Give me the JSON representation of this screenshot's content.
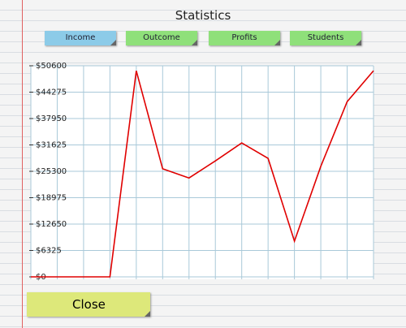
{
  "header": {
    "title": "Statistics"
  },
  "tabs": [
    "Income",
    "Outcome",
    "Profits",
    "Students"
  ],
  "chart_data": {
    "type": "line",
    "color": "#e00000",
    "values": [
      0,
      0,
      0,
      0,
      49400,
      25900,
      23700,
      27800,
      32100,
      28400,
      8560,
      26500,
      42000,
      49400
    ],
    "ylim": [
      0,
      50600
    ],
    "yticks": [
      {
        "value": 0,
        "label": "$0"
      },
      {
        "value": 6325,
        "label": "$6325"
      },
      {
        "value": 12650,
        "label": "$12650"
      },
      {
        "value": 18975,
        "label": "$18975"
      },
      {
        "value": 25300,
        "label": "$25300"
      },
      {
        "value": 31625,
        "label": "$31625"
      },
      {
        "value": 37950,
        "label": "$37950"
      },
      {
        "value": 44275,
        "label": "$44275"
      },
      {
        "value": 50600,
        "label": "$50600"
      }
    ],
    "grid": true
  },
  "close_button": "Close"
}
